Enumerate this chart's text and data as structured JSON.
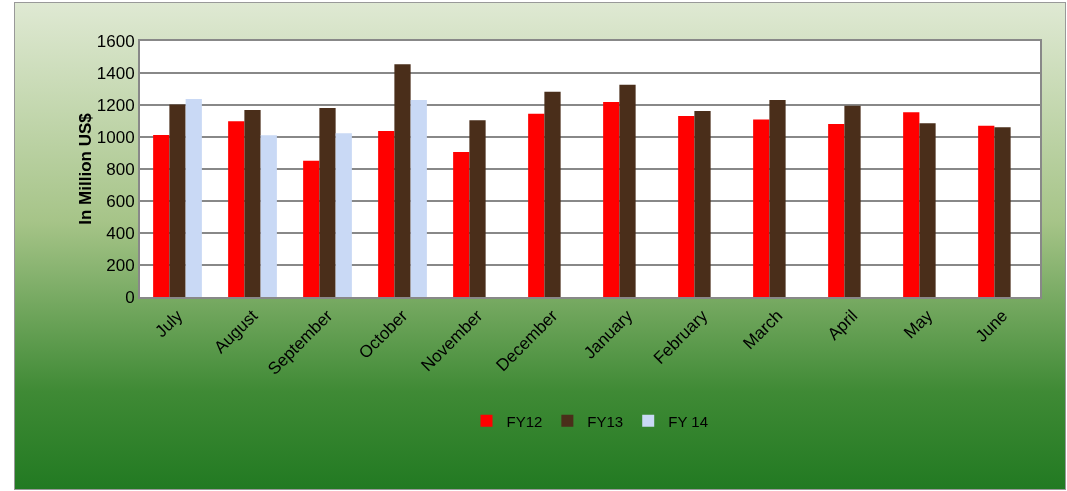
{
  "chart_data": {
    "type": "bar",
    "ylabel": "In Million US$",
    "categories": [
      "July",
      "August",
      "September",
      "October",
      "November",
      "December",
      "January",
      "February",
      "March",
      "April",
      "May",
      "June"
    ],
    "series": [
      {
        "name": "FY12",
        "color": "#ff0000",
        "values": [
          1013,
          1099,
          852,
          1038,
          907,
          1146,
          1219,
          1131,
          1110,
          1082,
          1154,
          1070
        ]
      },
      {
        "name": "FY13",
        "color": "#4a2e1a",
        "values": [
          1203,
          1169,
          1181,
          1454,
          1105,
          1283,
          1327,
          1162,
          1232,
          1196,
          1086,
          1061
        ]
      },
      {
        "name": "FY 14",
        "color": "#c9d9f5",
        "values": [
          1238,
          1011,
          1023,
          1232,
          null,
          null,
          null,
          null,
          null,
          null,
          null,
          null
        ]
      }
    ],
    "ylim": [
      0,
      1600
    ],
    "yticks": [
      0,
      200,
      400,
      600,
      800,
      1000,
      1200,
      1400,
      1600
    ],
    "grid": "y",
    "legend": "bottom"
  }
}
